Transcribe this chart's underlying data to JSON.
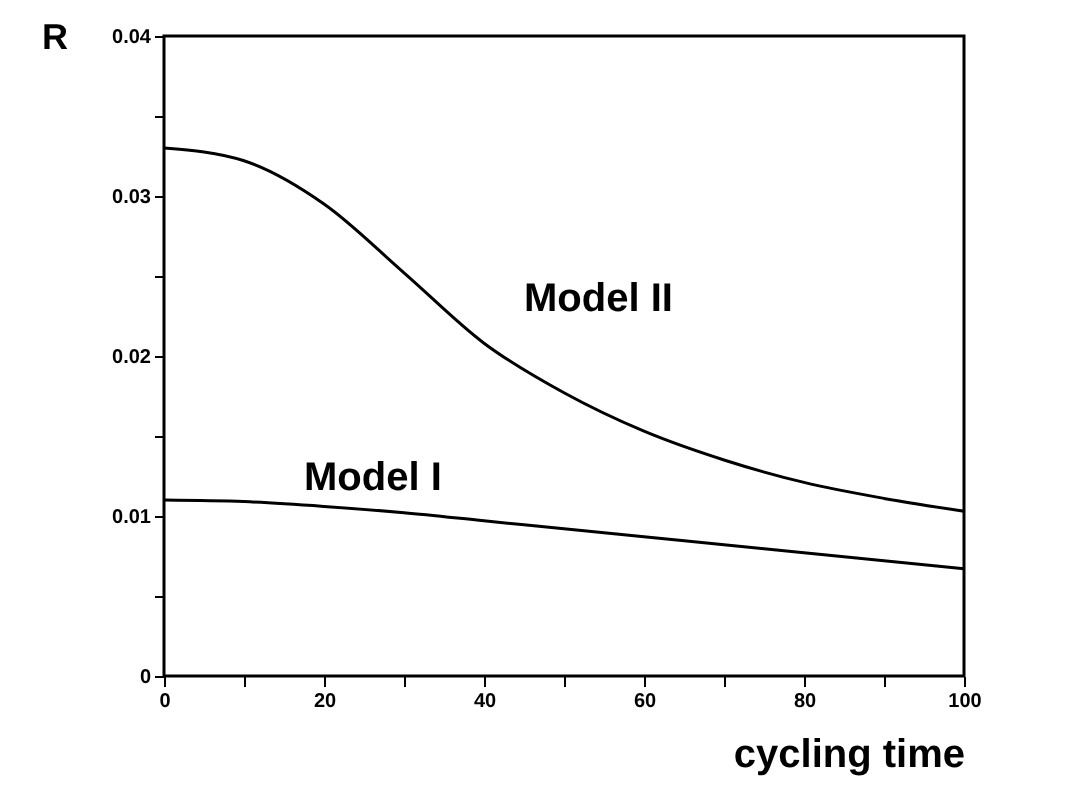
{
  "chart_data": {
    "type": "line",
    "xlabel": "cycling time",
    "ylabel": "R",
    "x": [
      0,
      10,
      20,
      30,
      40,
      50,
      60,
      70,
      80,
      90,
      100
    ],
    "series": [
      {
        "name": "Model II",
        "color": "#000000",
        "values": [
          0.033,
          0.0322,
          0.0295,
          0.0252,
          0.0208,
          0.0177,
          0.0153,
          0.0135,
          0.0121,
          0.0111,
          0.0103
        ]
      },
      {
        "name": "Model I",
        "color": "#000000",
        "values": [
          0.011,
          0.0109,
          0.0106,
          0.0102,
          0.0097,
          0.0092,
          0.0087,
          0.0082,
          0.0077,
          0.0072,
          0.0067
        ]
      }
    ],
    "xlim": [
      0,
      100
    ],
    "ylim": [
      0,
      0.04
    ],
    "xticks": [
      0,
      {
        "value": 10,
        "label": null
      },
      20,
      {
        "value": 30,
        "label": null
      },
      40,
      {
        "value": 50,
        "label": null
      },
      60,
      {
        "value": 70,
        "label": null
      },
      80,
      {
        "value": 90,
        "label": null
      },
      100
    ],
    "yticks": [
      0,
      {
        "value": 0.005,
        "label": null
      },
      0.01,
      {
        "value": 0.015,
        "label": null
      },
      0.02,
      {
        "value": 0.025,
        "label": null
      },
      0.03,
      {
        "value": 0.035,
        "label": null
      },
      0.04
    ],
    "grid": false,
    "legend": false,
    "marker": "none",
    "line_style": "solid"
  }
}
